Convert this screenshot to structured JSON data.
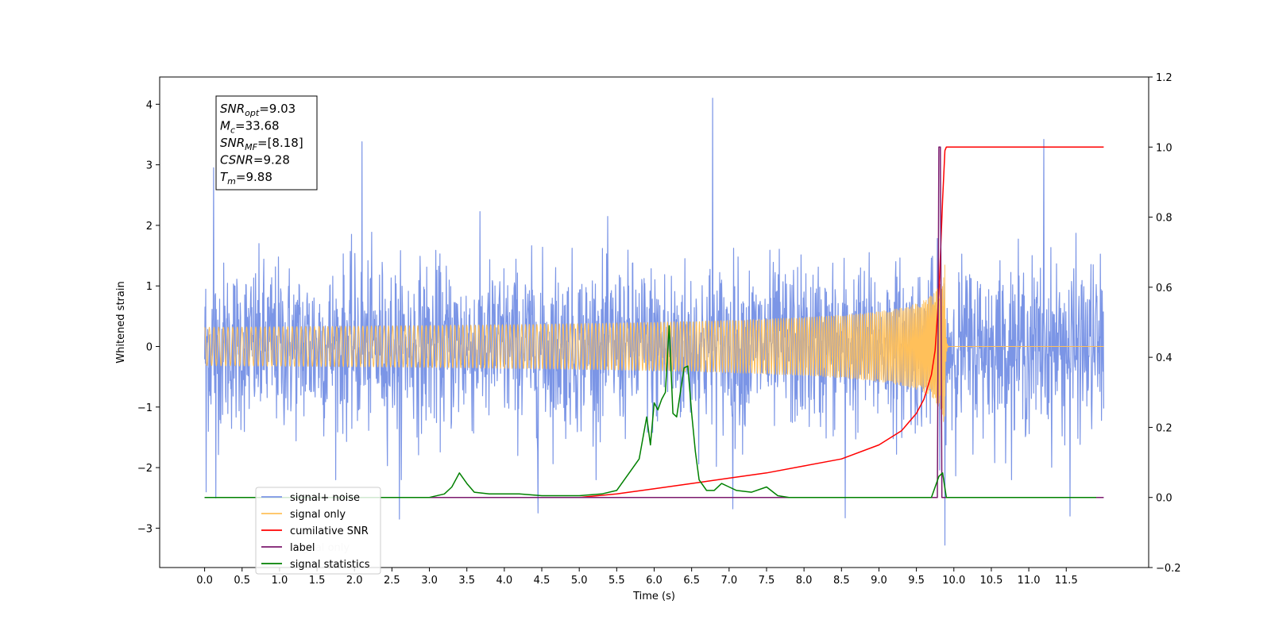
{
  "chart_data": {
    "type": "line",
    "xlabel": "Time (s)",
    "ylabel": "Whitened strain",
    "xlim": [
      -0.6,
      12.6
    ],
    "ylim": [
      -3.65,
      4.45
    ],
    "y2lim": [
      -0.2,
      1.2
    ],
    "x_ticks": [
      0.0,
      0.5,
      1.0,
      1.5,
      2.0,
      2.5,
      3.0,
      3.5,
      4.0,
      4.5,
      5.0,
      5.5,
      6.0,
      6.5,
      7.0,
      7.5,
      8.0,
      8.5,
      9.0,
      9.5,
      10.0,
      10.5,
      11.0,
      11.5
    ],
    "x_tick_labels": [
      "0.0",
      "0.5",
      "1.0",
      "1.5",
      "2.0",
      "2.5",
      "3.0",
      "3.5",
      "4.0",
      "4.5",
      "5.0",
      "5.5",
      "6.0",
      "6.5",
      "7.0",
      "7.5",
      "8.0",
      "8.5",
      "9.0",
      "9.5",
      "10.0",
      "10.5",
      "11.0",
      "11.5"
    ],
    "y_ticks": [
      -3,
      -2,
      -1,
      0,
      1,
      2,
      3,
      4
    ],
    "y_tick_labels": [
      "−3",
      "−2",
      "−1",
      "0",
      "1",
      "2",
      "3",
      "4"
    ],
    "y2_ticks": [
      -0.2,
      0.0,
      0.2,
      0.4,
      0.6,
      0.8,
      1.0,
      1.2
    ],
    "y2_tick_labels": [
      "−0.2",
      "0.0",
      "0.2",
      "0.4",
      "0.6",
      "0.8",
      "1.0",
      "1.2"
    ],
    "legend": {
      "position": "lower-left",
      "entries": [
        {
          "label": "signal+ noise",
          "color": "#7b95e6"
        },
        {
          "label": "signal only",
          "color": "#ffc05a"
        },
        {
          "label": "cumilative SNR",
          "color": "#ff0000"
        },
        {
          "label": "label",
          "color": "#7b1a6e"
        },
        {
          "label": "signal statistics",
          "color": "#008000"
        }
      ],
      "hidden_behind_legend": "signal only"
    },
    "annotation": {
      "lines": [
        {
          "sym": "SNR",
          "sub": "opt",
          "value": "=9.03"
        },
        {
          "sym": "M",
          "sub": "c",
          "value": "=33.68"
        },
        {
          "sym": "SNR",
          "sub": "MF",
          "value": "=[8.18]"
        },
        {
          "sym": "CSNR",
          "sub": "",
          "value": "=9.28"
        },
        {
          "sym": "T",
          "sub": "m",
          "value": "=9.88"
        }
      ]
    },
    "series": [
      {
        "name": "signal+ noise",
        "axis": "left",
        "color": "#7b95e6",
        "kind": "noise",
        "t_start": 0.0,
        "t_end": 12.0,
        "typical_range": [
          -1.5,
          1.6
        ],
        "peaks": [
          [
            0.12,
            2.95
          ],
          [
            2.1,
            3.38
          ],
          [
            6.78,
            4.1
          ],
          [
            11.2,
            3.42
          ],
          [
            0.02,
            -2.4
          ],
          [
            0.15,
            -2.5
          ],
          [
            2.6,
            -2.85
          ],
          [
            4.45,
            -2.75
          ],
          [
            7.05,
            -2.68
          ],
          [
            8.55,
            -2.83
          ],
          [
            9.88,
            -3.28
          ],
          [
            11.55,
            -2.8
          ]
        ]
      },
      {
        "name": "signal only",
        "axis": "left",
        "color": "#ffc05a",
        "kind": "chirp",
        "t_start": 0.0,
        "t_end": 12.0,
        "merger_time": 9.88,
        "amplitude_at_merger": 1.0
      },
      {
        "name": "cumilative SNR",
        "axis": "right",
        "color": "#ff0000",
        "x": [
          0.0,
          5.0,
          5.5,
          6.0,
          6.5,
          7.0,
          7.5,
          8.0,
          8.5,
          9.0,
          9.3,
          9.5,
          9.6,
          9.7,
          9.75,
          9.8,
          9.85,
          9.88,
          9.9,
          10.0,
          11.0,
          12.0
        ],
        "y": [
          0.0,
          0.0,
          0.01,
          0.025,
          0.04,
          0.055,
          0.07,
          0.09,
          0.11,
          0.15,
          0.19,
          0.24,
          0.28,
          0.35,
          0.42,
          0.58,
          0.85,
          0.99,
          1.0,
          1.0,
          1.0,
          1.0
        ]
      },
      {
        "name": "label",
        "axis": "right",
        "color": "#7b1a6e",
        "x": [
          0.0,
          9.78,
          9.8,
          9.82,
          9.84,
          12.0
        ],
        "y": [
          0.0,
          0.0,
          1.0,
          1.0,
          0.0,
          0.0
        ]
      },
      {
        "name": "signal statistics",
        "axis": "right",
        "color": "#008000",
        "x": [
          0.0,
          3.0,
          3.2,
          3.3,
          3.4,
          3.5,
          3.6,
          3.8,
          4.0,
          4.2,
          4.5,
          5.0,
          5.3,
          5.5,
          5.7,
          5.8,
          5.9,
          5.95,
          6.0,
          6.05,
          6.1,
          6.15,
          6.2,
          6.25,
          6.3,
          6.4,
          6.45,
          6.5,
          6.55,
          6.6,
          6.7,
          6.8,
          6.9,
          7.0,
          7.1,
          7.3,
          7.5,
          7.65,
          7.8,
          8.0,
          9.0,
          9.7,
          9.8,
          9.85,
          9.9,
          10.0,
          11.0,
          11.9
        ],
        "y": [
          0.0,
          0.0,
          0.01,
          0.03,
          0.07,
          0.04,
          0.015,
          0.01,
          0.01,
          0.01,
          0.005,
          0.005,
          0.01,
          0.02,
          0.08,
          0.11,
          0.23,
          0.15,
          0.27,
          0.25,
          0.28,
          0.3,
          0.49,
          0.24,
          0.23,
          0.37,
          0.375,
          0.24,
          0.13,
          0.05,
          0.02,
          0.02,
          0.04,
          0.03,
          0.02,
          0.015,
          0.03,
          0.005,
          0.0,
          0.0,
          0.0,
          0.0,
          0.06,
          0.07,
          0.0,
          0.0,
          0.0,
          0.0
        ]
      }
    ]
  }
}
